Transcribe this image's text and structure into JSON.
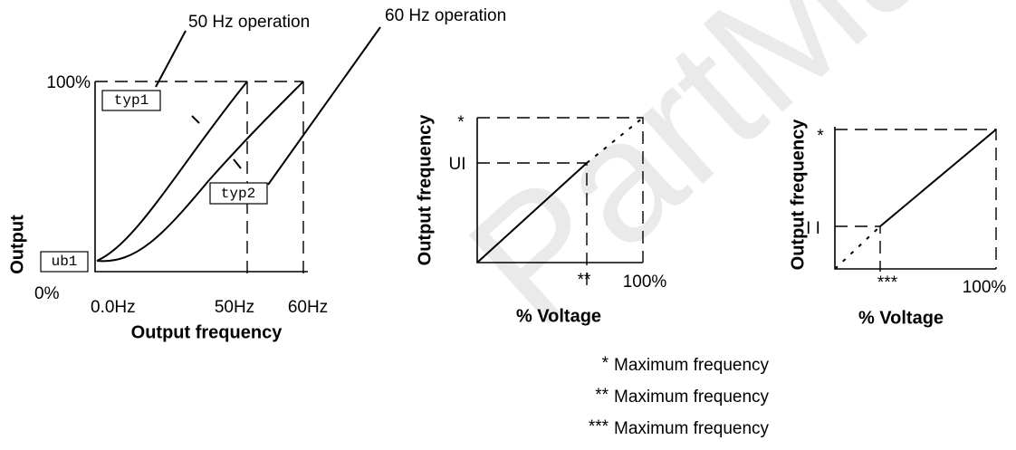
{
  "callouts": [
    "50 Hz operation",
    "60 Hz operation"
  ],
  "left": {
    "y_labels": [
      "100%",
      "0%"
    ],
    "y_title": "Output",
    "x_labels": [
      "0.0Hz",
      "50Hz",
      "60Hz"
    ],
    "x_title": "Output frequency",
    "boxes": [
      "typ1",
      "typ2",
      "ub1"
    ]
  },
  "middle": {
    "y_labels": [
      "*",
      "UI"
    ],
    "x_labels": [
      "**",
      "100%"
    ],
    "y_title": "Output frequency",
    "x_title": "% Voltage"
  },
  "right": {
    "y_labels": [
      "*",
      "I I"
    ],
    "x_labels": [
      "***",
      "100%"
    ],
    "y_title": "Output frequency",
    "x_title": "% Voltage"
  },
  "notes": [
    {
      "marker": "*",
      "text": "Maximum frequency"
    },
    {
      "marker": "**",
      "text": "Maximum frequency"
    },
    {
      "marker": "***",
      "text": "Maximum frequency"
    }
  ],
  "watermark": "PartManual"
}
